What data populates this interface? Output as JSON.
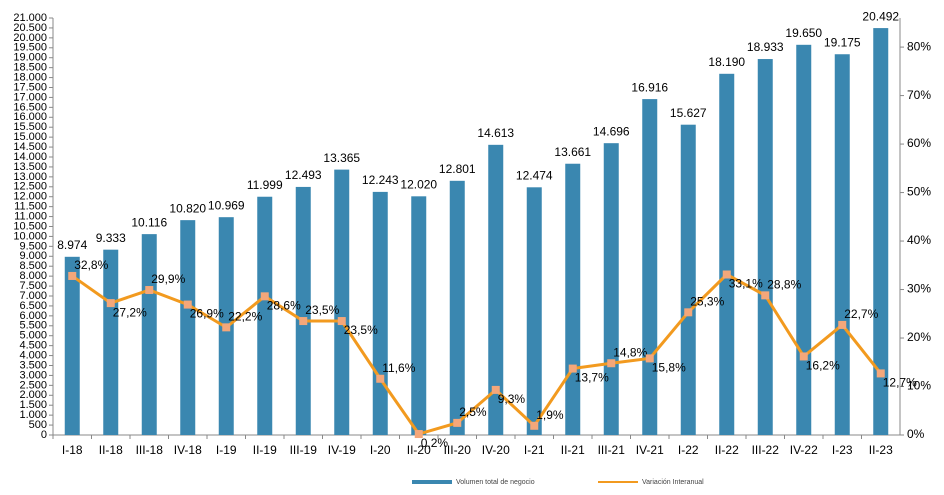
{
  "chart_data": {
    "type": "combo",
    "categories": [
      "I-18",
      "II-18",
      "III-18",
      "IV-18",
      "I-19",
      "II-19",
      "III-19",
      "IV-19",
      "I-20",
      "II-20",
      "III-20",
      "IV-20",
      "I-21",
      "II-21",
      "III-21",
      "IV-21",
      "I-22",
      "II-22",
      "III-22",
      "IV-22",
      "I-23",
      "II-23"
    ],
    "series": [
      {
        "name": "Volumen total de negocio",
        "type": "bar",
        "color": "#3a87b0",
        "values": [
          8974,
          9333,
          10116,
          10820,
          10969,
          11999,
          12493,
          13365,
          12243,
          12020,
          12801,
          14613,
          12474,
          13661,
          14696,
          16916,
          15627,
          18190,
          18933,
          19650,
          19175,
          20492
        ],
        "value_labels": [
          "8.974",
          "9.333",
          "10.116",
          "10.820",
          "10.969",
          "11.999",
          "12.493",
          "13.365",
          "12.243",
          "12.020",
          "12.801",
          "14.613",
          "12.474",
          "13.661",
          "14.696",
          "16.916",
          "15.627",
          "18.190",
          "18.933",
          "19.650",
          "19.175",
          "20.492"
        ]
      },
      {
        "name": "Variación Interanual",
        "type": "line",
        "axis": "y2",
        "color": "#f29a1f",
        "marker_color": "#f4a77a",
        "values": [
          32.8,
          27.2,
          29.9,
          26.9,
          22.2,
          28.6,
          23.5,
          23.5,
          11.6,
          0.2,
          2.5,
          9.3,
          1.9,
          13.7,
          14.8,
          15.8,
          25.3,
          33.1,
          28.8,
          16.2,
          22.7,
          12.7
        ],
        "value_labels": [
          "32,8%",
          "27,2%",
          "29,9%",
          "26,9%",
          "22,2%",
          "28,6%",
          "23,5%",
          "23,5%",
          "11,6%",
          "0,2%",
          "2,5%",
          "9,3%",
          "1,9%",
          "13,7%",
          "14,8%",
          "15,8%",
          "25,3%",
          "33,1%",
          "28,8%",
          "16,2%",
          "22,7%",
          "12,7%"
        ]
      }
    ],
    "ylim": [
      0,
      21000
    ],
    "yticks": [
      0,
      500,
      {
        "value": 1000,
        "label": "1.000"
      },
      {
        "value": 1500,
        "label": "1.500"
      },
      {
        "value": 2000,
        "label": "2.000"
      },
      {
        "value": 2500,
        "label": "2.500"
      },
      {
        "value": 3000,
        "label": "3.000"
      },
      {
        "value": 3500,
        "label": "3.500"
      },
      {
        "value": 4000,
        "label": "4.000"
      },
      {
        "value": 4500,
        "label": "4.500"
      },
      {
        "value": 5000,
        "label": "5.000"
      },
      {
        "value": 5500,
        "label": "5.500"
      },
      {
        "value": 6000,
        "label": "6.000"
      },
      {
        "value": 6500,
        "label": "6.500"
      },
      {
        "value": 7000,
        "label": "7.000"
      },
      {
        "value": 7500,
        "label": "7.500"
      },
      {
        "value": 8000,
        "label": "8.000"
      },
      {
        "value": 8500,
        "label": "8.500"
      },
      {
        "value": 9000,
        "label": "9.000"
      },
      {
        "value": 9500,
        "label": "9.500"
      },
      {
        "value": 10000,
        "label": "10.000"
      },
      {
        "value": 10500,
        "label": "10.500"
      },
      {
        "value": 11000,
        "label": "11.000"
      },
      {
        "value": 11500,
        "label": "11.500"
      },
      {
        "value": 12000,
        "label": "12.000"
      },
      {
        "value": 12500,
        "label": "12.500"
      },
      {
        "value": 13000,
        "label": "13.000"
      },
      {
        "value": 13500,
        "label": "13.500"
      },
      {
        "value": 14000,
        "label": "14.000"
      },
      {
        "value": 14500,
        "label": "14.500"
      },
      {
        "value": 15000,
        "label": "15.000"
      },
      {
        "value": 15500,
        "label": "15.500"
      },
      {
        "value": 16000,
        "label": "16.000"
      },
      {
        "value": 16500,
        "label": "16.500"
      },
      {
        "value": 17000,
        "label": "17.000"
      },
      {
        "value": 17500,
        "label": "17.500"
      },
      {
        "value": 18000,
        "label": "18.000"
      },
      {
        "value": 18500,
        "label": "18.500"
      },
      {
        "value": 19000,
        "label": "19.000"
      },
      {
        "value": 19500,
        "label": "19.500"
      },
      {
        "value": 20000,
        "label": "20.000"
      },
      {
        "value": 20500,
        "label": "20.500"
      },
      {
        "value": 21000,
        "label": "21.000"
      }
    ],
    "y2lim": [
      0,
      86
    ],
    "y2ticks": [
      {
        "value": 0,
        "label": "0%"
      },
      {
        "value": 10,
        "label": "10%"
      },
      {
        "value": 20,
        "label": "20%"
      },
      {
        "value": 30,
        "label": "30%"
      },
      {
        "value": 40,
        "label": "40%"
      },
      {
        "value": 50,
        "label": "50%"
      },
      {
        "value": 60,
        "label": "60%"
      },
      {
        "value": 70,
        "label": "70%"
      },
      {
        "value": 80,
        "label": "80%"
      }
    ],
    "legend": "bottom"
  }
}
